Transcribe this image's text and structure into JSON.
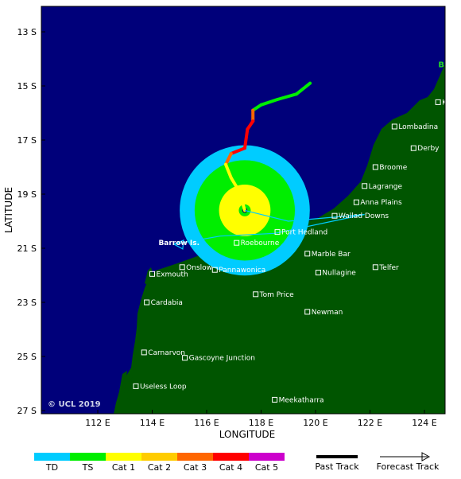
{
  "map": {
    "colors": {
      "ocean": "#00007a",
      "land": "#005500",
      "td": "#00ccff",
      "ts": "#00ee00",
      "cat1": "#ffff00",
      "cat2": "#ffcc00",
      "cat3": "#ff6600",
      "cat4": "#ff0000",
      "cat5": "#cc00cc"
    },
    "axes": {
      "xlabel": "LONGITUDE",
      "ylabel": "LATITUDE",
      "lon_ticks": [
        "112 E",
        "114 E",
        "116 E",
        "118 E",
        "120 E",
        "122 E",
        "124 E"
      ],
      "lat_ticks": [
        "13 S",
        "15 S",
        "17 S",
        "19 S",
        "21 S",
        "23 S",
        "25 S",
        "27 S"
      ]
    },
    "places": [
      {
        "name": "Kuri Bay",
        "lon": 124.5,
        "lat": 15.6
      },
      {
        "name": "Lombadina",
        "lon": 122.9,
        "lat": 16.5
      },
      {
        "name": "Derby",
        "lon": 123.6,
        "lat": 17.3
      },
      {
        "name": "Broome",
        "lon": 122.2,
        "lat": 18.0
      },
      {
        "name": "Lagrange",
        "lon": 121.8,
        "lat": 18.7
      },
      {
        "name": "Anna Plains",
        "lon": 121.5,
        "lat": 19.3
      },
      {
        "name": "Wallad Downs",
        "lon": 120.7,
        "lat": 19.8
      },
      {
        "name": "Port Hedland",
        "lon": 118.6,
        "lat": 20.4
      },
      {
        "name": "Roebourne",
        "lon": 117.1,
        "lat": 20.8
      },
      {
        "name": "Marble Bar",
        "lon": 119.7,
        "lat": 21.2
      },
      {
        "name": "Telfer",
        "lon": 122.2,
        "lat": 21.7
      },
      {
        "name": "Onslow",
        "lon": 115.1,
        "lat": 21.7
      },
      {
        "name": "Exmouth",
        "lon": 114.0,
        "lat": 21.95
      },
      {
        "name": "Pannawonica",
        "lon": 116.3,
        "lat": 21.8
      },
      {
        "name": "Nullagine",
        "lon": 120.1,
        "lat": 21.9
      },
      {
        "name": "Tom Price",
        "lon": 117.8,
        "lat": 22.7
      },
      {
        "name": "Cardabia",
        "lon": 113.8,
        "lat": 23.0
      },
      {
        "name": "Newman",
        "lon": 119.7,
        "lat": 23.35
      },
      {
        "name": "Carnarvon",
        "lon": 113.7,
        "lat": 24.85
      },
      {
        "name": "Gascoyne Junction",
        "lon": 115.2,
        "lat": 25.05
      },
      {
        "name": "Useless Loop",
        "lon": 113.4,
        "lat": 26.1
      },
      {
        "name": "Meekatharra",
        "lon": 118.5,
        "lat": 26.6
      }
    ],
    "islands": [
      {
        "name": "Barrow Is.",
        "lon": 115.4,
        "lat": 20.8
      }
    ],
    "edge_label": {
      "name": "Bigg",
      "lon": 124.8,
      "lat": 14.9
    },
    "storm": {
      "center": {
        "lon": 117.4,
        "lat": 19.6
      },
      "radii_deg": {
        "td": 2.4,
        "ts": 1.85,
        "cat1": 0.95,
        "core": 0.22
      },
      "past_track": [
        {
          "lon": 119.8,
          "lat": 14.9,
          "cat": "ts"
        },
        {
          "lon": 119.3,
          "lat": 15.3,
          "cat": "ts"
        },
        {
          "lon": 118.6,
          "lat": 15.5,
          "cat": "ts"
        },
        {
          "lon": 118.0,
          "lat": 15.7,
          "cat": "ts"
        },
        {
          "lon": 117.7,
          "lat": 15.9,
          "cat": "ts"
        },
        {
          "lon": 117.7,
          "lat": 16.3,
          "cat": "cat3"
        },
        {
          "lon": 117.5,
          "lat": 16.6,
          "cat": "cat4"
        },
        {
          "lon": 117.4,
          "lat": 17.3,
          "cat": "cat4"
        },
        {
          "lon": 116.9,
          "lat": 17.5,
          "cat": "cat4"
        },
        {
          "lon": 116.7,
          "lat": 17.9,
          "cat": "cat3"
        },
        {
          "lon": 116.9,
          "lat": 18.4,
          "cat": "cat1"
        },
        {
          "lon": 117.2,
          "lat": 18.9,
          "cat": "cat1"
        },
        {
          "lon": 117.4,
          "lat": 19.6,
          "cat": "cat1"
        }
      ],
      "forecast_track": [
        {
          "lon": 117.4,
          "lat": 19.6
        },
        {
          "lon": 119.0,
          "lat": 20.0
        },
        {
          "lon": 121.8,
          "lat": 19.75
        },
        {
          "lon": 118.5,
          "lat": 20.45
        },
        {
          "lon": 116.5,
          "lat": 20.55
        },
        {
          "lon": 114.8,
          "lat": 20.85
        }
      ]
    },
    "copyright": "© UCL 2019"
  },
  "legend": {
    "scale": [
      {
        "label": "TD",
        "color": "#00ccff"
      },
      {
        "label": "TS",
        "color": "#00ee00"
      },
      {
        "label": "Cat 1",
        "color": "#ffff00"
      },
      {
        "label": "Cat 2",
        "color": "#ffcc00"
      },
      {
        "label": "Cat 3",
        "color": "#ff6600"
      },
      {
        "label": "Cat 4",
        "color": "#ff0000"
      },
      {
        "label": "Cat 5",
        "color": "#cc00cc"
      }
    ],
    "past_track_label": "Past Track",
    "forecast_track_label": "Forecast Track"
  }
}
